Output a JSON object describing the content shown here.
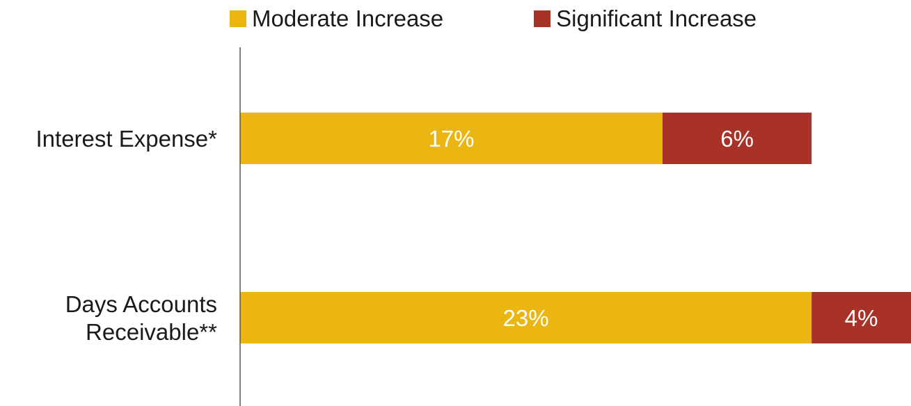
{
  "colors": {
    "moderate": "#ebb512",
    "significant": "#a93228",
    "axis": "#555555",
    "label_text": "#1a1a1a",
    "bar_text": "#ffffff"
  },
  "legend": {
    "moderate_label": "Moderate Increase",
    "significant_label": "Significant Increase"
  },
  "chart_data": {
    "type": "bar",
    "orientation": "horizontal",
    "stacked": true,
    "categories": [
      [
        "Interest Expense*"
      ],
      [
        "Days Accounts",
        "Receivable**"
      ]
    ],
    "series": [
      {
        "name": "Moderate Increase",
        "values": [
          17,
          23
        ],
        "labels": [
          "17%",
          "23%"
        ]
      },
      {
        "name": "Significant Increase",
        "values": [
          6,
          4
        ],
        "labels": [
          "6%",
          "4%"
        ]
      }
    ],
    "xlim": [
      0,
      27
    ],
    "grid": false,
    "legend_position": "top"
  }
}
